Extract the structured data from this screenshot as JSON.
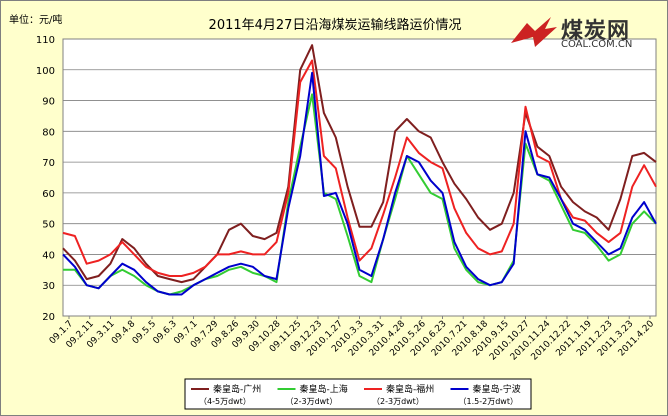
{
  "chart_data": {
    "type": "line",
    "title": "2011年4月27日沿海煤炭运输线路运价情况",
    "unit_label": "单位：元/吨",
    "ylim": [
      20,
      110
    ],
    "yticks": [
      20,
      30,
      40,
      50,
      60,
      70,
      80,
      90,
      100,
      110
    ],
    "grid": true,
    "legend_position": "bottom",
    "xtick_labels": [
      "09.1.7",
      "09.2.11",
      "09.3.11",
      "09.4.8",
      "09.5.5",
      "09.6.3",
      "09.7.1",
      "09.7.29",
      "09.8.26",
      "09.9.30",
      "09.10.28",
      "09.11.25",
      "09.12.23",
      "2010.1.27",
      "2010.3.3",
      "2010.3.31",
      "2010.4.28",
      "2010.5.26",
      "2010.6.23",
      "2010.7.21",
      "2010.8.18",
      "2010.9.15",
      "2010.10.27",
      "2010.11.24",
      "2010.12.22",
      "2011.1.19",
      "2011.2.23",
      "2011.3.23",
      "2011.4.20"
    ],
    "series": [
      {
        "name": "秦皇岛-广州",
        "subtitle": "（4-5万dwt）",
        "color": "#7f1f1f",
        "values": [
          42,
          38,
          32,
          33,
          37,
          45,
          42,
          37,
          33,
          32,
          31,
          32,
          36,
          40,
          48,
          50,
          46,
          45,
          47,
          62,
          100,
          108,
          86,
          78,
          62,
          49,
          49,
          57,
          80,
          84,
          80,
          78,
          70,
          63,
          58,
          52,
          48,
          50,
          60,
          86,
          75,
          72,
          62,
          57,
          54,
          52,
          48,
          58,
          72,
          73,
          70
        ]
      },
      {
        "name": "秦皇岛-上海",
        "subtitle": "（2-3万dwt）",
        "color": "#33cc33",
        "values": [
          35,
          35,
          30,
          29,
          33,
          35,
          33,
          30,
          28,
          27,
          28,
          30,
          32,
          33,
          35,
          36,
          34,
          33,
          31,
          57,
          75,
          92,
          60,
          58,
          46,
          33,
          31,
          45,
          58,
          72,
          66,
          60,
          58,
          42,
          35,
          31,
          30,
          31,
          38,
          76,
          66,
          64,
          56,
          48,
          47,
          43,
          38,
          40,
          50,
          54,
          50
        ]
      },
      {
        "name": "秦皇岛-福州",
        "subtitle": "（2-3万dwt）",
        "color": "#ee2222",
        "values": [
          47,
          46,
          37,
          38,
          40,
          44,
          40,
          36,
          34,
          33,
          33,
          34,
          36,
          40,
          40,
          41,
          40,
          40,
          44,
          60,
          96,
          103,
          72,
          68,
          52,
          38,
          42,
          53,
          65,
          78,
          73,
          70,
          68,
          55,
          47,
          42,
          40,
          41,
          50,
          88,
          72,
          70,
          58,
          52,
          51,
          47,
          44,
          47,
          62,
          69,
          62
        ]
      },
      {
        "name": "秦皇岛-宁波",
        "subtitle": "（1.5-2万dwt）",
        "color": "#0000cc",
        "values": [
          40,
          36,
          30,
          29,
          33,
          37,
          35,
          31,
          28,
          27,
          27,
          30,
          32,
          34,
          36,
          37,
          36,
          33,
          32,
          55,
          72,
          99,
          59,
          60,
          50,
          35,
          33,
          45,
          60,
          72,
          70,
          64,
          60,
          44,
          36,
          32,
          30,
          31,
          37,
          80,
          66,
          65,
          58,
          50,
          48,
          44,
          40,
          42,
          52,
          57,
          50
        ]
      }
    ]
  },
  "logo": {
    "name": "煤炭网",
    "url_text": "COAL.COM.CN",
    "colors": {
      "mark": "#cc2222",
      "text": "#333333"
    }
  }
}
